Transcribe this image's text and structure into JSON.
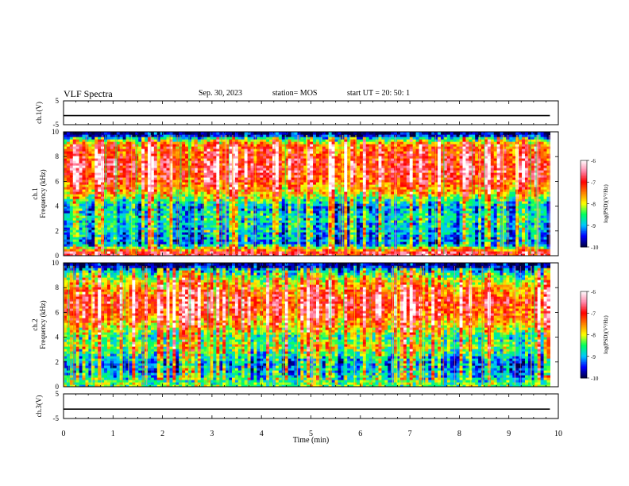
{
  "header": {
    "title": "VLF Spectra",
    "date": "Sep. 30, 2023",
    "station": "station= MOS",
    "start_ut": "start  UT =   20: 50: 1"
  },
  "chart_data": [
    {
      "type": "line",
      "panel": "ch.1 waveform",
      "ylabel": "ch.1(V)",
      "ylim": [
        -5,
        5
      ],
      "yticks": [
        5,
        -5
      ],
      "series": [
        {
          "values": [
            [
              0,
              -1.2
            ],
            [
              9.83,
              -1.2
            ]
          ]
        }
      ],
      "grid": false
    },
    {
      "type": "heatmap",
      "panel": "ch.1 spectrogram",
      "ylabel": "ch.1 Frequency (kHz)",
      "ylim": [
        0,
        10
      ],
      "yticks": [
        0,
        2,
        4,
        6,
        8,
        10
      ],
      "xlim": [
        0,
        9.83
      ],
      "colorbar": {
        "label": "log(PSD)(V²/Hz)",
        "ticks": [
          -6,
          -7,
          -8,
          -9,
          -10
        ],
        "range": [
          -10,
          -6
        ]
      },
      "profile": [
        {
          "f_khz": 0.3,
          "log_psd": -6.8
        },
        {
          "f_khz": 1.0,
          "log_psd": -9.4
        },
        {
          "f_khz": 2.0,
          "log_psd": -9.1
        },
        {
          "f_khz": 3.0,
          "log_psd": -8.9
        },
        {
          "f_khz": 4.0,
          "log_psd": -9.2
        },
        {
          "f_khz": 5.0,
          "log_psd": -8.0
        },
        {
          "f_khz": 6.0,
          "log_psd": -7.3
        },
        {
          "f_khz": 7.0,
          "log_psd": -7.0
        },
        {
          "f_khz": 8.0,
          "log_psd": -7.2
        },
        {
          "f_khz": 9.0,
          "log_psd": -7.5
        },
        {
          "f_khz": 9.8,
          "log_psd": -9.8
        }
      ]
    },
    {
      "type": "heatmap",
      "panel": "ch.2 spectrogram",
      "ylabel": "ch.2 Frequency (kHz)",
      "ylim": [
        0,
        10
      ],
      "yticks": [
        0,
        2,
        4,
        6,
        8,
        10
      ],
      "xlim": [
        0,
        9.83
      ],
      "colorbar": {
        "label": "log(PSD)(V²/Hz)",
        "ticks": [
          -6,
          -7,
          -8,
          -9,
          -10
        ],
        "range": [
          -10,
          -6
        ]
      },
      "profile": [
        {
          "f_khz": 0.3,
          "log_psd": -8.3
        },
        {
          "f_khz": 1.0,
          "log_psd": -9.0
        },
        {
          "f_khz": 2.0,
          "log_psd": -9.2
        },
        {
          "f_khz": 3.3,
          "log_psd": -8.2
        },
        {
          "f_khz": 4.0,
          "log_psd": -8.6
        },
        {
          "f_khz": 5.0,
          "log_psd": -7.7
        },
        {
          "f_khz": 6.0,
          "log_psd": -7.2
        },
        {
          "f_khz": 7.0,
          "log_psd": -7.0
        },
        {
          "f_khz": 8.0,
          "log_psd": -7.6
        },
        {
          "f_khz": 9.0,
          "log_psd": -8.4
        },
        {
          "f_khz": 9.8,
          "log_psd": -9.8
        }
      ]
    },
    {
      "type": "line",
      "panel": "ch.3 waveform",
      "ylabel": "ch.3(V)",
      "ylim": [
        -5,
        5
      ],
      "yticks": [
        5,
        -5
      ],
      "series": [
        {
          "values": [
            [
              0,
              -1.2
            ],
            [
              9.83,
              -1.2
            ]
          ]
        }
      ],
      "grid": false
    }
  ],
  "x_axis": {
    "label": "Time  (min)",
    "range": [
      0,
      10
    ],
    "ticks": [
      "0",
      "1",
      "2",
      "3",
      "4",
      "5",
      "6",
      "7",
      "8",
      "9",
      "10"
    ]
  },
  "colors": {
    "colormap": [
      "#000040",
      "#0000ff",
      "#00c8ff",
      "#00ff60",
      "#ffff00",
      "#ff8000",
      "#ff0000",
      "#ff88aa",
      "#ffffff"
    ]
  }
}
